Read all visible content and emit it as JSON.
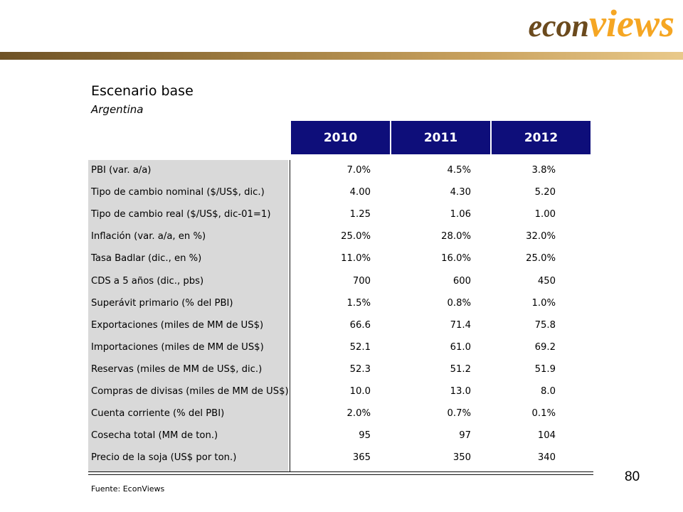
{
  "logo": {
    "part1": "econ",
    "part2": "views"
  },
  "title": "Escenario base",
  "subtitle": "Argentina",
  "years": [
    "2010",
    "2011",
    "2012"
  ],
  "rows": [
    {
      "label": "PBI (var. a/a)",
      "values": [
        "7.0%",
        "4.5%",
        "3.8%"
      ]
    },
    {
      "label": "Tipo de cambio nominal ($/US$, dic.)",
      "values": [
        "4.00",
        "4.30",
        "5.20"
      ]
    },
    {
      "label": "Tipo de cambio real ($/US$, dic-01=1)",
      "values": [
        "1.25",
        "1.06",
        "1.00"
      ]
    },
    {
      "label": "Inflación (var. a/a, en %)",
      "values": [
        "25.0%",
        "28.0%",
        "32.0%"
      ]
    },
    {
      "label": "Tasa Badlar (dic., en %)",
      "values": [
        "11.0%",
        "16.0%",
        "25.0%"
      ]
    },
    {
      "label": "CDS a 5 años (dic., pbs)",
      "values": [
        "700",
        "600",
        "450"
      ]
    },
    {
      "label": "Superávit primario (% del PBI)",
      "values": [
        "1.5%",
        "0.8%",
        "1.0%"
      ]
    },
    {
      "label": "Exportaciones (miles de MM de US$)",
      "values": [
        "66.6",
        "71.4",
        "75.8"
      ]
    },
    {
      "label": "Importaciones (miles de MM de US$)",
      "values": [
        "52.1",
        "61.0",
        "69.2"
      ]
    },
    {
      "label": "Reservas (miles de MM de US$, dic.)",
      "values": [
        "52.3",
        "51.2",
        "51.9"
      ]
    },
    {
      "label": "Compras de divisas (miles de MM de US$)",
      "values": [
        "10.0",
        "13.0",
        "8.0"
      ]
    },
    {
      "label": "Cuenta corriente (% del PBI)",
      "values": [
        "2.0%",
        "0.7%",
        "0.1%"
      ]
    },
    {
      "label": "Cosecha total (MM de ton.)",
      "values": [
        "95",
        "97",
        "104"
      ]
    },
    {
      "label": "Precio de la soja (US$ por ton.)",
      "values": [
        "365",
        "350",
        "340"
      ]
    }
  ],
  "source": "Fuente: EconViews",
  "page_number": "80",
  "colors": {
    "header_bg": "#0e0e7a",
    "label_col_bg": "#d9d9d9",
    "logo_dark": "#6b4a1d",
    "logo_light": "#f5a623"
  }
}
